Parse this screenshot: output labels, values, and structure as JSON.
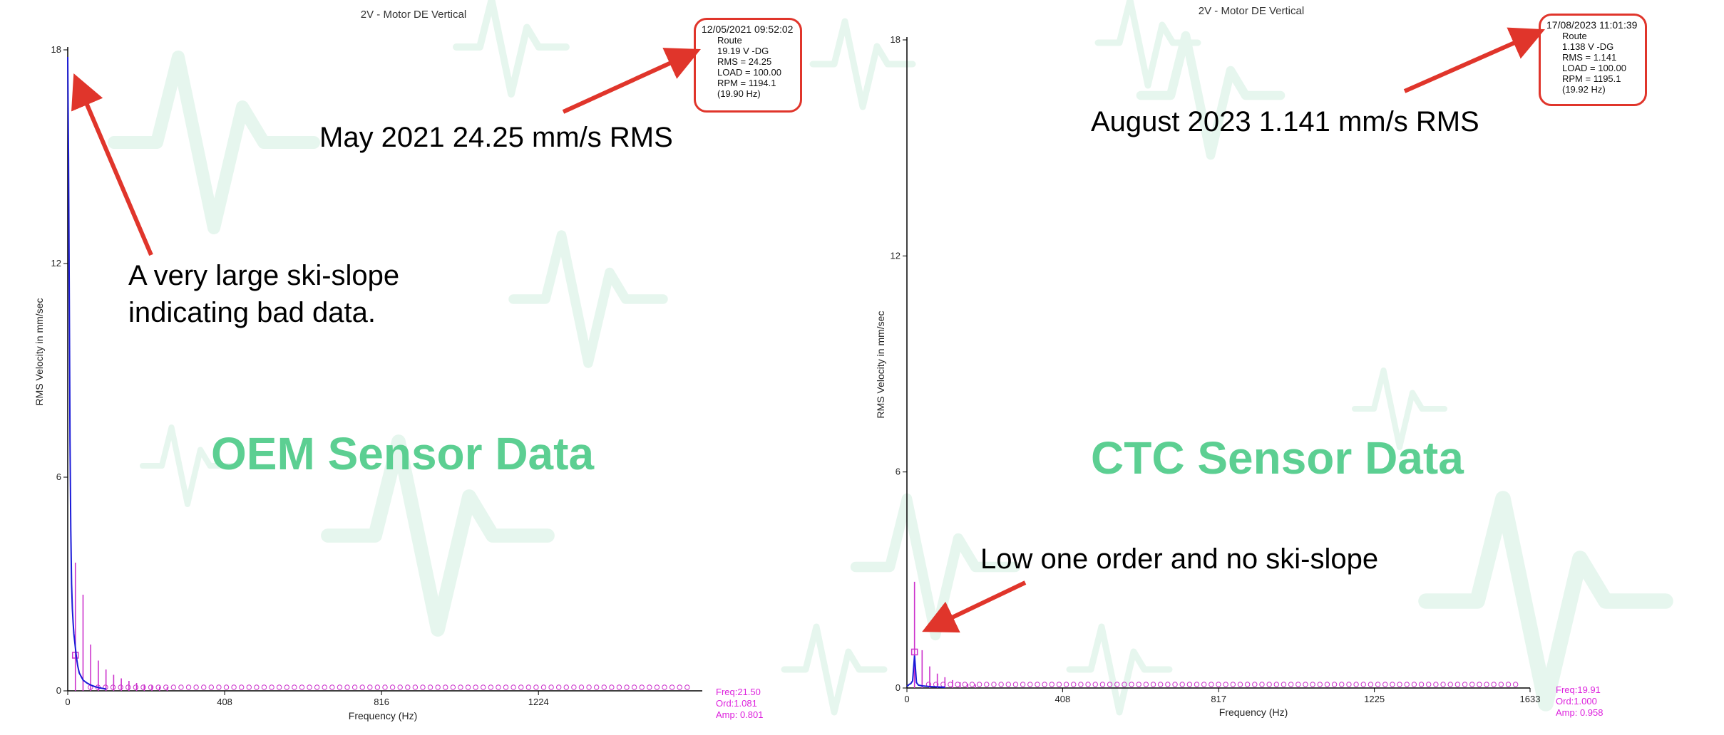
{
  "chart_data": [
    {
      "type": "line",
      "title": "2V - Motor DE Vertical",
      "xlabel": "Frequency (Hz)",
      "ylabel": "RMS Velocity in mm/sec",
      "xlim": [
        0,
        1650
      ],
      "ylim": [
        0,
        18
      ],
      "x_ticks": [
        "0",
        "408",
        "816",
        "1224"
      ],
      "y_ticks": [
        "0",
        "6",
        "12",
        "18"
      ],
      "x_tick_values": [
        0,
        408,
        816,
        1224
      ],
      "y_tick_values": [
        0,
        6,
        12,
        18
      ],
      "grid": false,
      "series": [
        {
          "x": [
            0,
            2,
            4,
            6,
            8,
            10,
            12,
            14,
            16,
            18,
            20,
            22,
            24,
            26,
            28,
            30,
            35,
            40,
            50,
            60,
            70,
            80,
            90,
            100
          ],
          "values": [
            17.8,
            15,
            11,
            7,
            4.5,
            3,
            2.3,
            1.9,
            1.6,
            1.4,
            1.2,
            1.0,
            0.85,
            0.7,
            0.6,
            0.5,
            0.4,
            0.3,
            0.22,
            0.16,
            0.12,
            0.09,
            0.07,
            0.05
          ],
          "color": "#1a1ad8"
        }
      ],
      "harmonics": {
        "fundamental_hz": 19.9,
        "values": [
          3.6,
          2.7,
          1.3,
          0.85,
          0.6,
          0.45,
          0.35,
          0.28,
          0.22,
          0.18,
          0.15,
          0.12,
          0.1
        ],
        "color": "#cc33cc"
      },
      "markers": {
        "count": 80,
        "level": 0.04,
        "color": "#cc33cc"
      },
      "cursor": {
        "freq": "Freq:21.50",
        "ord": "Ord:1.081",
        "amp": "Amp: 0.801"
      },
      "info": {
        "datetime": "12/05/2021 09:52:02",
        "lines": [
          "Route",
          "19.19 V -DG",
          "RMS = 24.25",
          "LOAD = 100.00",
          "RPM = 1194.1",
          "(19.90 Hz)"
        ]
      },
      "annotations": {
        "headline": "May 2021 24.25 mm/s RMS",
        "note": [
          "A very large ski-slope",
          "indicating bad data."
        ],
        "panel_label": "OEM Sensor Data"
      }
    },
    {
      "type": "line",
      "title": "2V - Motor DE Vertical",
      "xlabel": "Frequency (Hz)",
      "ylabel": "RMS Velocity in mm/sec",
      "xlim": [
        0,
        1633
      ],
      "ylim": [
        0,
        18
      ],
      "x_ticks": [
        "0",
        "408",
        "817",
        "1225",
        "1633"
      ],
      "y_ticks": [
        "0",
        "6",
        "12",
        "18"
      ],
      "x_tick_values": [
        0,
        408,
        817,
        1225,
        1633
      ],
      "y_tick_values": [
        0,
        6,
        12,
        18
      ],
      "grid": false,
      "series": [
        {
          "x": [
            0,
            3,
            6,
            10,
            15,
            19.9,
            25,
            30,
            40,
            60,
            80,
            100
          ],
          "values": [
            0.05,
            0.07,
            0.1,
            0.12,
            0.2,
            0.9,
            0.15,
            0.08,
            0.06,
            0.04,
            0.03,
            0.02
          ],
          "color": "#1a1ad8"
        }
      ],
      "harmonics": {
        "fundamental_hz": 19.92,
        "values": [
          2.95,
          1.05,
          0.6,
          0.4,
          0.3,
          0.22,
          0.16,
          0.12,
          0.1
        ],
        "color": "#cc33cc"
      },
      "markers": {
        "count": 82,
        "level": 0.04,
        "color": "#cc33cc"
      },
      "cursor": {
        "freq": "Freq:19.91",
        "ord": "Ord:1.000",
        "amp": "Amp: 0.958"
      },
      "info": {
        "datetime": "17/08/2023 11:01:39",
        "lines": [
          "Route",
          "1.138 V -DG",
          "RMS = 1.141",
          "LOAD = 100.00",
          "RPM = 1195.1",
          "(19.92 Hz)"
        ]
      },
      "annotations": {
        "headline": "August 2023 1.141 mm/s RMS",
        "note": [
          "Low one order and no ski-slope"
        ],
        "panel_label": "CTC Sensor Data"
      }
    }
  ],
  "colors": {
    "arrow": "#e0352b",
    "panel_label": "#5ccf92",
    "watermark": "#e6f6ee",
    "spectrum": "#1a1ad8",
    "harmonic": "#cc33cc"
  }
}
